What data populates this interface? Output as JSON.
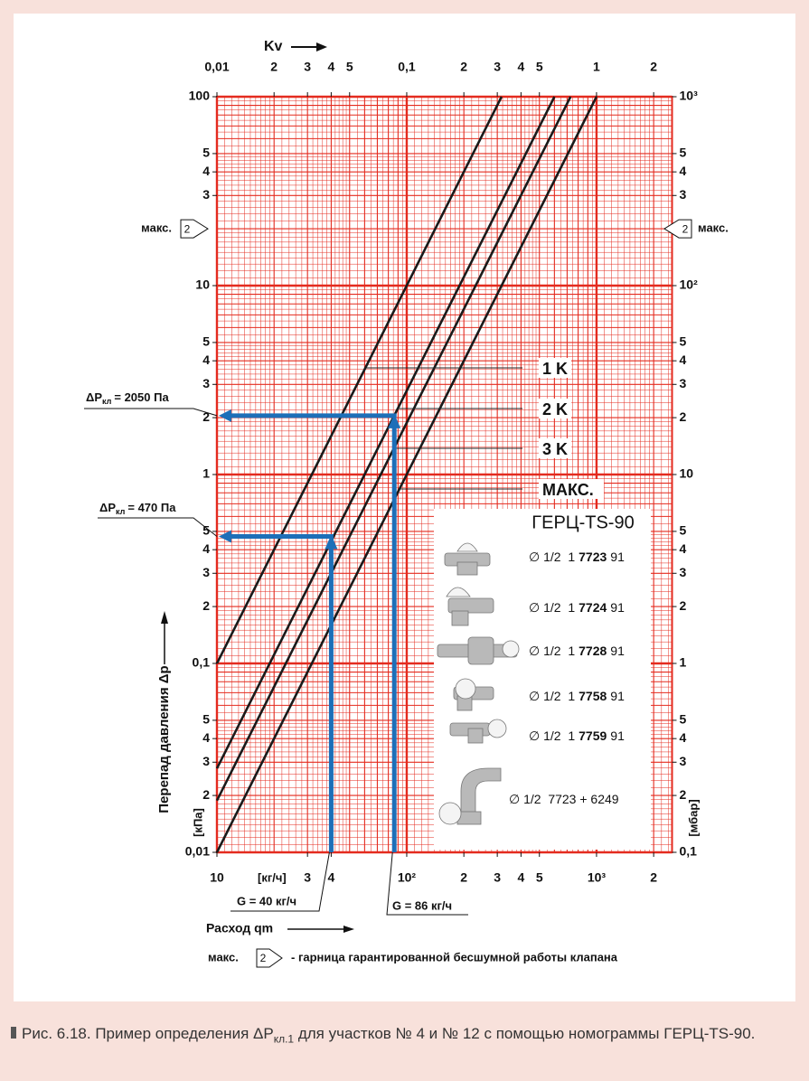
{
  "chart_data": {
    "type": "line",
    "log_scale": true,
    "grid": "log",
    "grid_color": "#e42b1f",
    "x_title": "Расход qm",
    "x_unit": "[кг/ч]",
    "x2_title": "Kv",
    "y_title": "Перепад давления Δp",
    "y_unit": "[кПа]",
    "y2_unit": "[мбар]",
    "xlim": [
      10,
      2500
    ],
    "xticks": [
      10,
      {
        "value": 30,
        "label": "3"
      },
      {
        "value": 40,
        "label": "4"
      },
      {
        "value": 100,
        "label": "10²"
      },
      {
        "value": 200,
        "label": "2"
      },
      {
        "value": 300,
        "label": "3"
      },
      {
        "value": 400,
        "label": "4"
      },
      {
        "value": 500,
        "label": "5"
      },
      {
        "value": 1000,
        "label": "10³"
      },
      {
        "value": 2000,
        "label": "2"
      }
    ],
    "x2lim": [
      0.01,
      2.5
    ],
    "x2ticks": [
      {
        "value": 0.01,
        "label": "0,01"
      },
      {
        "value": 0.02,
        "label": "2"
      },
      {
        "value": 0.03,
        "label": "3"
      },
      {
        "value": 0.04,
        "label": "4"
      },
      {
        "value": 0.05,
        "label": "5"
      },
      {
        "value": 0.1,
        "label": "0,1"
      },
      {
        "value": 0.2,
        "label": "2"
      },
      {
        "value": 0.3,
        "label": "3"
      },
      {
        "value": 0.4,
        "label": "4"
      },
      {
        "value": 0.5,
        "label": "5"
      },
      1,
      2
    ],
    "ylim": [
      0.01,
      100
    ],
    "yticks": [
      100,
      {
        "value": 50,
        "label": "5"
      },
      {
        "value": 40,
        "label": "4"
      },
      {
        "value": 30,
        "label": "3"
      },
      10,
      5,
      4,
      3,
      2,
      1,
      {
        "value": 0.5,
        "label": "5"
      },
      {
        "value": 0.4,
        "label": "4"
      },
      {
        "value": 0.3,
        "label": "3"
      },
      {
        "value": 0.2,
        "label": "2"
      },
      {
        "value": 0.1,
        "label": "0,1"
      },
      {
        "value": 0.05,
        "label": "5"
      },
      {
        "value": 0.04,
        "label": "4"
      },
      {
        "value": 0.03,
        "label": "3"
      },
      {
        "value": 0.02,
        "label": "2"
      },
      {
        "value": 0.01,
        "label": "0,01"
      }
    ],
    "y2lim": [
      0.1,
      1000
    ],
    "y2ticks": [
      {
        "value": 1000,
        "label": "10³"
      },
      {
        "value": 500,
        "label": "5"
      },
      {
        "value": 400,
        "label": "4"
      },
      {
        "value": 300,
        "label": "3"
      },
      {
        "value": 100,
        "label": "10²"
      },
      {
        "value": 50,
        "label": "5"
      },
      {
        "value": 40,
        "label": "4"
      },
      {
        "value": 30,
        "label": "3"
      },
      {
        "value": 20,
        "label": "2"
      },
      10,
      5,
      4,
      3,
      2,
      1,
      {
        "value": 0.5,
        "label": "5"
      },
      {
        "value": 0.4,
        "label": "4"
      },
      {
        "value": 0.3,
        "label": "3"
      },
      {
        "value": 0.2,
        "label": "2"
      },
      {
        "value": 0.1,
        "label": "0,1"
      }
    ],
    "series": [
      {
        "name": "1 K",
        "color": "#1a1a1a",
        "x": [
          10,
          316
        ],
        "values": [
          0.1,
          100
        ]
      },
      {
        "name": "2 K",
        "color": "#1a1a1a",
        "x": [
          10,
          600
        ],
        "values": [
          0.0278,
          100
        ]
      },
      {
        "name": "3 K",
        "color": "#1a1a1a",
        "x": [
          10,
          730
        ],
        "values": [
          0.0188,
          100
        ]
      },
      {
        "name": "МАКС.",
        "color": "#1a1a1a",
        "x": [
          10,
          1000
        ],
        "values": [
          0.01,
          100
        ]
      }
    ],
    "examples_color": "#1d6fb8",
    "examples": [
      {
        "x": 40,
        "y": 0.47,
        "x_label": "G = 40 кг/ч",
        "y_label_main": "ΔP",
        "y_label_sub": "кл",
        "y_label": "= 470 Па"
      },
      {
        "x": 86,
        "y": 2.05,
        "x_label": "G = 86 кг/ч",
        "y_label_main": "ΔP",
        "y_label_sub": "кл",
        "y_label": "= 2050 Па"
      }
    ],
    "max_marker": {
      "label": "макс.",
      "number": "2",
      "value": 20
    },
    "legend_note": "- гарница гарантированной бесшумной работы клапана",
    "inset": {
      "title": "ГЕРЦ-TS-90",
      "rows": [
        {
          "prefix": "∅ 1/2  1",
          "code": "7723",
          "suffix": "91"
        },
        {
          "prefix": "∅ 1/2  1",
          "code": "7724",
          "suffix": "91"
        },
        {
          "prefix": "∅ 1/2  1",
          "code": "7728",
          "suffix": "91"
        },
        {
          "prefix": "∅ 1/2  1",
          "code": "7758",
          "suffix": "91"
        },
        {
          "prefix": "∅ 1/2  1",
          "code": "7759",
          "suffix": "91"
        },
        {
          "prefix": "∅ 1/2  7723 + 6249"
        }
      ]
    }
  },
  "caption": [
    "Рис. 6.18. Пример определения ΔP",
    "кл.1",
    " для участков № 4 и № 12 с помощью номограммы ГЕРЦ-TS-90."
  ]
}
